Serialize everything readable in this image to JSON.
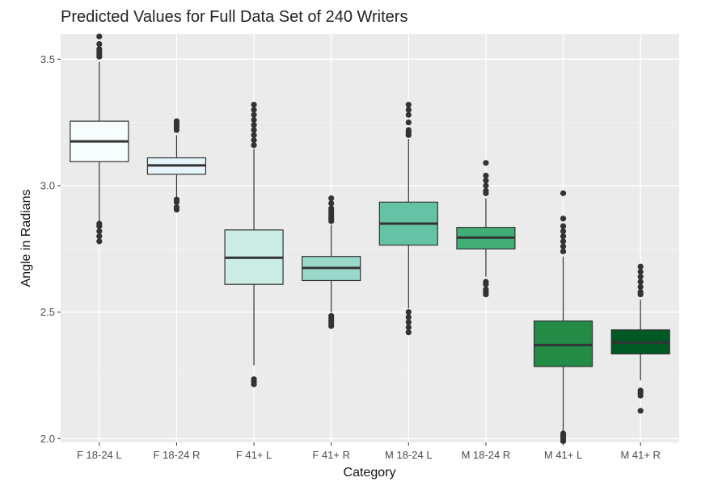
{
  "chart_data": {
    "type": "boxplot",
    "title": "Predicted Values for Full Data Set of 240 Writers",
    "xlabel": "Category",
    "ylabel": "Angle in Radians",
    "ylim": [
      1.985,
      3.6
    ],
    "yticks": [
      2.0,
      2.5,
      3.0,
      3.5
    ],
    "ytick_labels": [
      "2.0",
      "2.5",
      "3.0",
      "3.5"
    ],
    "grid": true,
    "legend": "none",
    "colors": {
      "panel_bg": "#ebebeb",
      "grid_major": "#ffffff",
      "box_stroke": "#333333"
    },
    "categories": [
      "F 18-24 L",
      "F 18-24 R",
      "F 41+ L",
      "F 41+ R",
      "M 18-24 L",
      "M 18-24 R",
      "M 41+ L",
      "M 41+ R"
    ],
    "boxes": [
      {
        "category": "F 18-24 L",
        "fill": "#f7fcfd",
        "whisker_low": 2.86,
        "q1": 3.095,
        "median": 3.175,
        "q3": 3.255,
        "whisker_high": 3.49,
        "outliers": [
          2.78,
          2.8,
          2.82,
          2.84,
          2.85,
          3.51,
          3.52,
          3.53,
          3.54,
          3.56,
          3.59
        ]
      },
      {
        "category": "F 18-24 R",
        "fill": "#e5f5f9",
        "whisker_low": 2.955,
        "q1": 3.045,
        "median": 3.08,
        "q3": 3.11,
        "whisker_high": 3.2,
        "outliers": [
          2.905,
          2.915,
          2.935,
          2.945,
          3.22,
          3.23,
          3.24,
          3.25,
          3.255
        ]
      },
      {
        "category": "F 41+ L",
        "fill": "#ccece6",
        "whisker_low": 2.29,
        "q1": 2.61,
        "median": 2.715,
        "q3": 2.825,
        "whisker_high": 3.145,
        "outliers": [
          2.215,
          2.225,
          2.235,
          3.16,
          3.18,
          3.2,
          3.22,
          3.24,
          3.26,
          3.28,
          3.3,
          3.32
        ]
      },
      {
        "category": "F 41+ R",
        "fill": "#99d8c9",
        "whisker_low": 2.5,
        "q1": 2.625,
        "median": 2.675,
        "q3": 2.72,
        "whisker_high": 2.845,
        "outliers": [
          2.445,
          2.455,
          2.465,
          2.475,
          2.485,
          2.86,
          2.87,
          2.88,
          2.89,
          2.9,
          2.91,
          2.93,
          2.95
        ]
      },
      {
        "category": "M 18-24 L",
        "fill": "#66c2a4",
        "whisker_low": 2.515,
        "q1": 2.765,
        "median": 2.85,
        "q3": 2.935,
        "whisker_high": 3.185,
        "outliers": [
          2.42,
          2.44,
          2.46,
          2.48,
          2.5,
          3.2,
          3.21,
          3.22,
          3.25,
          3.28,
          3.3,
          3.32
        ]
      },
      {
        "category": "M 18-24 R",
        "fill": "#41ae76",
        "whisker_low": 2.64,
        "q1": 2.75,
        "median": 2.795,
        "q3": 2.835,
        "whisker_high": 2.95,
        "outliers": [
          2.57,
          2.58,
          2.59,
          2.61,
          2.62,
          2.97,
          2.98,
          3.0,
          3.02,
          3.04,
          3.09
        ]
      },
      {
        "category": "M 41+ L",
        "fill": "#238b45",
        "whisker_low": 2.03,
        "q1": 2.285,
        "median": 2.37,
        "q3": 2.465,
        "whisker_high": 2.72,
        "outliers": [
          1.99,
          2.0,
          2.01,
          2.02,
          2.74,
          2.76,
          2.78,
          2.8,
          2.82,
          2.84,
          2.87,
          2.97
        ]
      },
      {
        "category": "M 41+ R",
        "fill": "#005824",
        "whisker_low": 2.23,
        "q1": 2.335,
        "median": 2.38,
        "q3": 2.43,
        "whisker_high": 2.55,
        "outliers": [
          2.11,
          2.17,
          2.18,
          2.19,
          2.57,
          2.58,
          2.6,
          2.62,
          2.64,
          2.66,
          2.68
        ]
      }
    ]
  }
}
